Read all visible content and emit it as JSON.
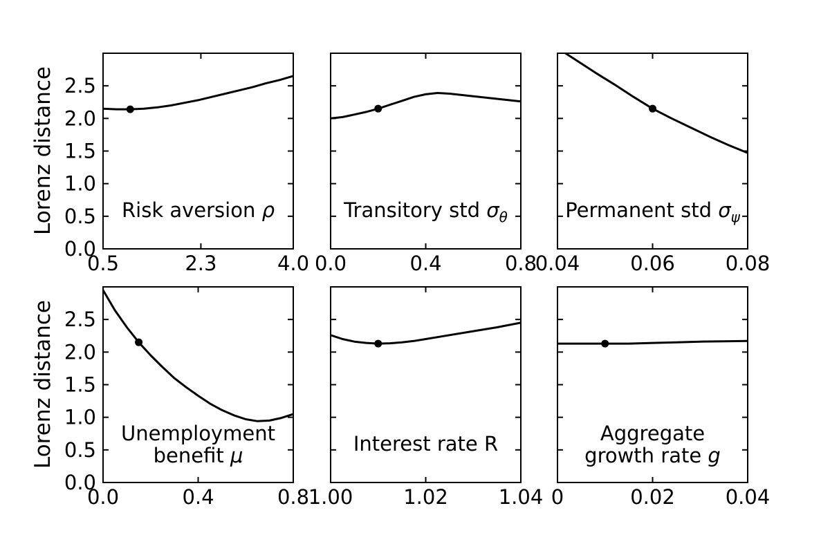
{
  "figure": {
    "ylabel": "Lorenz distance",
    "background_color": "#ffffff",
    "foreground_color": "#000000",
    "grid": false,
    "legend": null,
    "ylim": [
      0.0,
      3.0
    ],
    "yticks": [
      {
        "v": 0.0,
        "label": "0.0"
      },
      {
        "v": 0.5,
        "label": "0.5"
      },
      {
        "v": 1.0,
        "label": "1.0"
      },
      {
        "v": 1.5,
        "label": "1.5"
      },
      {
        "v": 2.0,
        "label": "2.0"
      },
      {
        "v": 2.5,
        "label": "2.5"
      }
    ]
  },
  "chart_data": [
    {
      "type": "line",
      "id": "risk-aversion",
      "title": "Risk aversion ρ",
      "label_lines": [
        [
          {
            "t": "Risk aversion "
          },
          {
            "t": "ρ",
            "italic": true
          }
        ]
      ],
      "xlim": [
        0.5,
        4.0
      ],
      "ylim": [
        0.0,
        3.0
      ],
      "xticks": [
        {
          "v": 0.5,
          "label": "0.5"
        },
        {
          "v": 2.3,
          "label": "2.3"
        },
        {
          "v": 4.0,
          "label": "4.0"
        }
      ],
      "x": [
        0.5,
        0.75,
        1.0,
        1.25,
        1.5,
        1.75,
        2.0,
        2.25,
        2.5,
        2.75,
        3.0,
        3.25,
        3.5,
        3.75,
        4.0
      ],
      "y": [
        2.15,
        2.14,
        2.14,
        2.15,
        2.17,
        2.2,
        2.24,
        2.28,
        2.33,
        2.38,
        2.43,
        2.48,
        2.54,
        2.59,
        2.65
      ],
      "marker": {
        "x": 1.0,
        "y": 2.14
      },
      "show_ytick_labels": true
    },
    {
      "type": "line",
      "id": "transitory-std",
      "title": "Transitory std σθ",
      "label_lines": [
        [
          {
            "t": "Transitory std "
          },
          {
            "t": "σ",
            "italic": true
          },
          {
            "t": "θ",
            "italic": true,
            "sub": true
          }
        ]
      ],
      "xlim": [
        0.0,
        0.8
      ],
      "ylim": [
        0.0,
        3.0
      ],
      "xticks": [
        {
          "v": 0.0,
          "label": "0.0"
        },
        {
          "v": 0.4,
          "label": "0.4"
        },
        {
          "v": 0.8,
          "label": "0.8"
        }
      ],
      "x": [
        0.0,
        0.05,
        0.1,
        0.15,
        0.2,
        0.25,
        0.3,
        0.35,
        0.4,
        0.45,
        0.5,
        0.55,
        0.6,
        0.65,
        0.7,
        0.75,
        0.8
      ],
      "y": [
        2.0,
        2.02,
        2.06,
        2.1,
        2.15,
        2.21,
        2.27,
        2.33,
        2.37,
        2.39,
        2.38,
        2.36,
        2.34,
        2.32,
        2.3,
        2.28,
        2.26
      ],
      "marker": {
        "x": 0.2,
        "y": 2.15
      },
      "show_ytick_labels": false
    },
    {
      "type": "line",
      "id": "permanent-std",
      "title": "Permanent std σψ",
      "label_lines": [
        [
          {
            "t": "Permanent std "
          },
          {
            "t": "σ",
            "italic": true
          },
          {
            "t": "ψ",
            "italic": true,
            "sub": true
          }
        ]
      ],
      "xlim": [
        0.04,
        0.08
      ],
      "ylim": [
        0.0,
        3.0
      ],
      "xticks": [
        {
          "v": 0.04,
          "label": "0.04"
        },
        {
          "v": 0.06,
          "label": "0.06"
        },
        {
          "v": 0.08,
          "label": "0.08"
        }
      ],
      "x": [
        0.04,
        0.044,
        0.048,
        0.052,
        0.056,
        0.06,
        0.064,
        0.068,
        0.072,
        0.076,
        0.08
      ],
      "y": [
        3.08,
        2.89,
        2.7,
        2.52,
        2.33,
        2.15,
        2.0,
        1.86,
        1.72,
        1.59,
        1.47
      ],
      "marker": {
        "x": 0.06,
        "y": 2.15
      },
      "show_ytick_labels": false
    },
    {
      "type": "line",
      "id": "unemployment-benefit",
      "title": "Unemployment benefit μ",
      "label_lines": [
        [
          {
            "t": "Unemployment"
          }
        ],
        [
          {
            "t": "benefit "
          },
          {
            "t": "μ",
            "italic": true
          }
        ]
      ],
      "xlim": [
        0.0,
        0.8
      ],
      "ylim": [
        0.0,
        3.0
      ],
      "xticks": [
        {
          "v": 0.0,
          "label": "0.0"
        },
        {
          "v": 0.4,
          "label": "0.4"
        },
        {
          "v": 0.8,
          "label": "0.8"
        }
      ],
      "x": [
        0.0,
        0.05,
        0.1,
        0.15,
        0.2,
        0.25,
        0.3,
        0.35,
        0.4,
        0.45,
        0.5,
        0.55,
        0.6,
        0.65,
        0.7,
        0.75,
        0.8
      ],
      "y": [
        2.95,
        2.64,
        2.38,
        2.15,
        1.95,
        1.77,
        1.6,
        1.46,
        1.33,
        1.21,
        1.11,
        1.03,
        0.97,
        0.94,
        0.95,
        0.99,
        1.05
      ],
      "marker": {
        "x": 0.15,
        "y": 2.15
      },
      "show_ytick_labels": true
    },
    {
      "type": "line",
      "id": "interest-rate",
      "title": "Interest rate R",
      "label_lines": [
        [
          {
            "t": "Interest rate R"
          }
        ]
      ],
      "xlim": [
        1.0,
        1.04
      ],
      "ylim": [
        0.0,
        3.0
      ],
      "xticks": [
        {
          "v": 1.0,
          "label": "1.00"
        },
        {
          "v": 1.02,
          "label": "1.02"
        },
        {
          "v": 1.04,
          "label": "1.04"
        }
      ],
      "x": [
        1.0,
        1.0025,
        1.005,
        1.0075,
        1.01,
        1.0125,
        1.015,
        1.0175,
        1.02,
        1.025,
        1.03,
        1.035,
        1.04
      ],
      "y": [
        2.26,
        2.2,
        2.16,
        2.14,
        2.13,
        2.135,
        2.15,
        2.17,
        2.2,
        2.26,
        2.32,
        2.38,
        2.45
      ],
      "marker": {
        "x": 1.01,
        "y": 2.13
      },
      "show_ytick_labels": false
    },
    {
      "type": "line",
      "id": "aggregate-growth",
      "title": "Aggregate growth rate g",
      "label_lines": [
        [
          {
            "t": "Aggregate"
          }
        ],
        [
          {
            "t": "growth rate "
          },
          {
            "t": "g",
            "italic": true
          }
        ]
      ],
      "xlim": [
        0.0,
        0.04
      ],
      "ylim": [
        0.0,
        3.0
      ],
      "xticks": [
        {
          "v": 0.0,
          "label": "0"
        },
        {
          "v": 0.02,
          "label": "0.02"
        },
        {
          "v": 0.04,
          "label": "0.04"
        }
      ],
      "x": [
        0.0,
        0.005,
        0.01,
        0.015,
        0.02,
        0.025,
        0.03,
        0.035,
        0.04
      ],
      "y": [
        2.13,
        2.13,
        2.13,
        2.13,
        2.14,
        2.15,
        2.16,
        2.165,
        2.17
      ],
      "marker": {
        "x": 0.01,
        "y": 2.13
      },
      "show_ytick_labels": false
    }
  ]
}
